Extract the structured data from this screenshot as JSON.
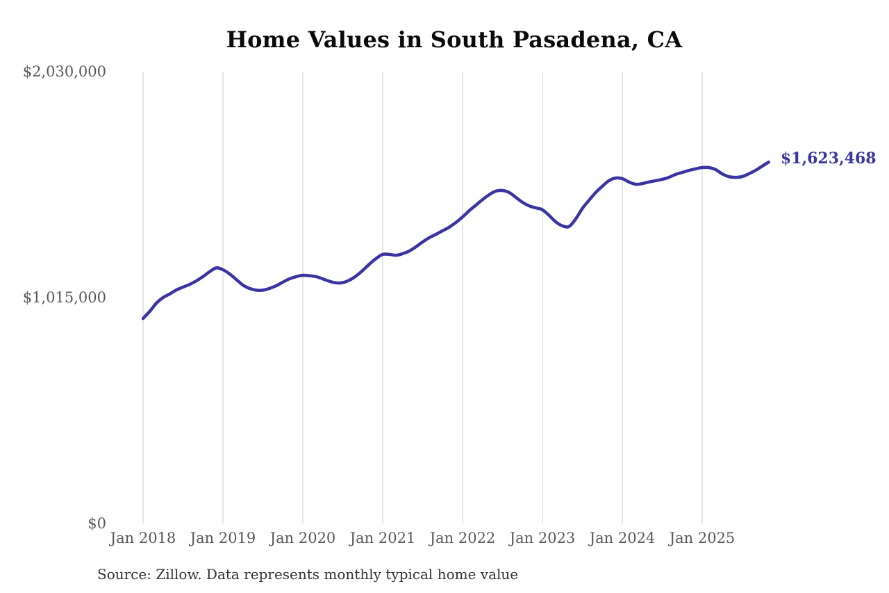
{
  "title": "Home Values in South Pasadena, CA",
  "source_note": "Source: Zillow. Data represents monthly typical home value",
  "colors": {
    "background": "#ffffff",
    "title": "#0a0a0a",
    "source_text": "#333333"
  },
  "chart_data": {
    "type": "line",
    "title": "Home Values in South Pasadena, CA",
    "xlabel": "",
    "ylabel": "",
    "grid": "vertical-only",
    "legend": "none",
    "ylim": [
      0,
      2030000
    ],
    "y_ticks": [
      0,
      1015000,
      2030000
    ],
    "y_tick_labels": [
      "$0",
      "$1,015,000",
      "$2,030,000"
    ],
    "x_tick_labels": [
      "Jan 2018",
      "Jan 2019",
      "Jan 2020",
      "Jan 2021",
      "Jan 2022",
      "Jan 2023",
      "Jan 2024",
      "Jan 2025"
    ],
    "line_color": "#3a34a2",
    "grid_color": "#cccccc",
    "tick_label_color": "#575757",
    "annotation": {
      "text": "$1,623,468",
      "value": 1623468
    },
    "x": [
      "2018-01",
      "2018-02",
      "2018-03",
      "2018-04",
      "2018-05",
      "2018-06",
      "2018-07",
      "2018-08",
      "2018-09",
      "2018-10",
      "2018-11",
      "2018-12",
      "2019-01",
      "2019-02",
      "2019-03",
      "2019-04",
      "2019-05",
      "2019-06",
      "2019-07",
      "2019-08",
      "2019-09",
      "2019-10",
      "2019-11",
      "2019-12",
      "2020-01",
      "2020-02",
      "2020-03",
      "2020-04",
      "2020-05",
      "2020-06",
      "2020-07",
      "2020-08",
      "2020-09",
      "2020-10",
      "2020-11",
      "2020-12",
      "2021-01",
      "2021-02",
      "2021-03",
      "2021-04",
      "2021-05",
      "2021-06",
      "2021-07",
      "2021-08",
      "2021-09",
      "2021-10",
      "2021-11",
      "2021-12",
      "2022-01",
      "2022-02",
      "2022-03",
      "2022-04",
      "2022-05",
      "2022-06",
      "2022-07",
      "2022-08",
      "2022-09",
      "2022-10",
      "2022-11",
      "2022-12",
      "2023-01",
      "2023-02",
      "2023-03",
      "2023-04",
      "2023-05",
      "2023-06",
      "2023-07",
      "2023-08",
      "2023-09",
      "2023-10",
      "2023-11",
      "2023-12",
      "2024-01",
      "2024-02",
      "2024-03",
      "2024-04",
      "2024-05",
      "2024-06",
      "2024-07",
      "2024-08",
      "2024-09",
      "2024-10",
      "2024-11",
      "2024-12",
      "2025-01",
      "2025-02",
      "2025-03",
      "2025-04",
      "2025-05",
      "2025-06",
      "2025-07",
      "2025-08",
      "2025-09",
      "2025-10",
      "2025-11"
    ],
    "values": [
      921000,
      953000,
      990000,
      1015000,
      1031000,
      1049000,
      1062000,
      1074000,
      1090000,
      1109000,
      1131000,
      1148000,
      1140000,
      1121000,
      1096000,
      1071000,
      1056000,
      1048000,
      1048000,
      1056000,
      1068000,
      1084000,
      1099000,
      1109000,
      1115000,
      1113000,
      1109000,
      1099000,
      1088000,
      1081000,
      1082000,
      1093000,
      1112000,
      1137000,
      1165000,
      1190000,
      1209000,
      1209000,
      1205000,
      1212000,
      1224000,
      1243000,
      1265000,
      1284000,
      1299000,
      1315000,
      1331000,
      1352000,
      1377000,
      1405000,
      1430000,
      1455000,
      1477000,
      1493000,
      1496000,
      1487000,
      1465000,
      1443000,
      1427000,
      1418000,
      1409000,
      1384000,
      1355000,
      1337000,
      1334000,
      1368000,
      1415000,
      1452000,
      1487000,
      1515000,
      1540000,
      1552000,
      1549000,
      1534000,
      1524000,
      1527000,
      1534000,
      1540000,
      1546000,
      1555000,
      1568000,
      1577000,
      1586000,
      1593000,
      1599000,
      1599000,
      1590000,
      1571000,
      1558000,
      1555000,
      1558000,
      1571000,
      1586000,
      1605000,
      1623468
    ]
  }
}
